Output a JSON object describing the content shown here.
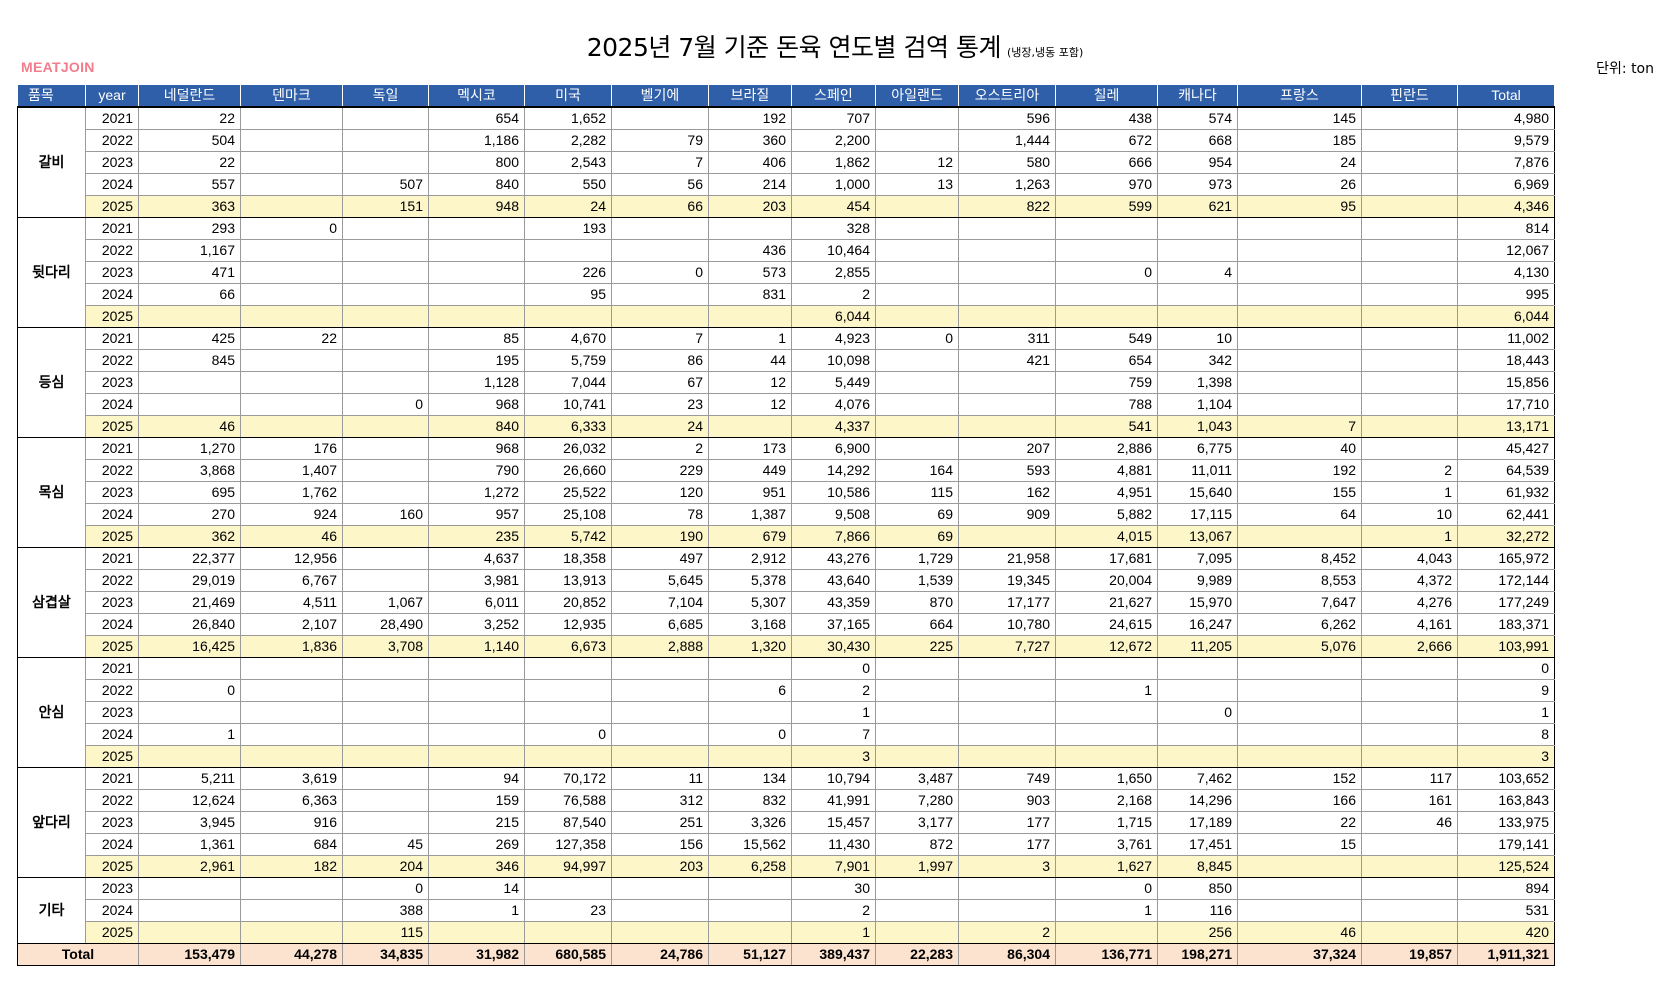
{
  "title": "2025년 7월 기준 돈육 연도별 검역 통계",
  "subtitle": "(냉장,냉동 포함)",
  "brand": "MEATJOIN",
  "unit": "단위: ton",
  "headers": [
    "품목",
    "year",
    "네덜란드",
    "덴마크",
    "독일",
    "멕시코",
    "미국",
    "벨기에",
    "브라질",
    "스페인",
    "아일랜드",
    "오스트리아",
    "칠레",
    "캐나다",
    "프랑스",
    "핀란드",
    "Total"
  ],
  "groups": [
    {
      "name": "갈비",
      "rows": [
        {
          "year": "2021",
          "v": [
            "22",
            "",
            "",
            "654",
            "1,652",
            "",
            "192",
            "707",
            "",
            "596",
            "438",
            "574",
            "145",
            "",
            "4,980"
          ]
        },
        {
          "year": "2022",
          "v": [
            "504",
            "",
            "",
            "1,186",
            "2,282",
            "79",
            "360",
            "2,200",
            "",
            "1,444",
            "672",
            "668",
            "185",
            "",
            "9,579"
          ]
        },
        {
          "year": "2023",
          "v": [
            "22",
            "",
            "",
            "800",
            "2,543",
            "7",
            "406",
            "1,862",
            "12",
            "580",
            "666",
            "954",
            "24",
            "",
            "7,876"
          ]
        },
        {
          "year": "2024",
          "v": [
            "557",
            "",
            "507",
            "840",
            "550",
            "56",
            "214",
            "1,000",
            "13",
            "1,263",
            "970",
            "973",
            "26",
            "",
            "6,969"
          ]
        },
        {
          "year": "2025",
          "v": [
            "363",
            "",
            "151",
            "948",
            "24",
            "66",
            "203",
            "454",
            "",
            "822",
            "599",
            "621",
            "95",
            "",
            "4,346"
          ]
        }
      ]
    },
    {
      "name": "뒷다리",
      "rows": [
        {
          "year": "2021",
          "v": [
            "293",
            "0",
            "",
            "",
            "193",
            "",
            "",
            "328",
            "",
            "",
            "",
            "",
            "",
            "",
            "814"
          ]
        },
        {
          "year": "2022",
          "v": [
            "1,167",
            "",
            "",
            "",
            "",
            "",
            "436",
            "10,464",
            "",
            "",
            "",
            "",
            "",
            "",
            "12,067"
          ]
        },
        {
          "year": "2023",
          "v": [
            "471",
            "",
            "",
            "",
            "226",
            "0",
            "573",
            "2,855",
            "",
            "",
            "0",
            "4",
            "",
            "",
            "4,130"
          ]
        },
        {
          "year": "2024",
          "v": [
            "66",
            "",
            "",
            "",
            "95",
            "",
            "831",
            "2",
            "",
            "",
            "",
            "",
            "",
            "",
            "995"
          ]
        },
        {
          "year": "2025",
          "v": [
            "",
            "",
            "",
            "",
            "",
            "",
            "",
            "6,044",
            "",
            "",
            "",
            "",
            "",
            "",
            "6,044"
          ]
        }
      ]
    },
    {
      "name": "등심",
      "rows": [
        {
          "year": "2021",
          "v": [
            "425",
            "22",
            "",
            "85",
            "4,670",
            "7",
            "1",
            "4,923",
            "0",
            "311",
            "549",
            "10",
            "",
            "",
            "11,002"
          ]
        },
        {
          "year": "2022",
          "v": [
            "845",
            "",
            "",
            "195",
            "5,759",
            "86",
            "44",
            "10,098",
            "",
            "421",
            "654",
            "342",
            "",
            "",
            "18,443"
          ]
        },
        {
          "year": "2023",
          "v": [
            "",
            "",
            "",
            "1,128",
            "7,044",
            "67",
            "12",
            "5,449",
            "",
            "",
            "759",
            "1,398",
            "",
            "",
            "15,856"
          ]
        },
        {
          "year": "2024",
          "v": [
            "",
            "",
            "0",
            "968",
            "10,741",
            "23",
            "12",
            "4,076",
            "",
            "",
            "788",
            "1,104",
            "",
            "",
            "17,710"
          ]
        },
        {
          "year": "2025",
          "v": [
            "46",
            "",
            "",
            "840",
            "6,333",
            "24",
            "",
            "4,337",
            "",
            "",
            "541",
            "1,043",
            "7",
            "",
            "13,171"
          ]
        }
      ]
    },
    {
      "name": "목심",
      "rows": [
        {
          "year": "2021",
          "v": [
            "1,270",
            "176",
            "",
            "968",
            "26,032",
            "2",
            "173",
            "6,900",
            "",
            "207",
            "2,886",
            "6,775",
            "40",
            "",
            "45,427"
          ]
        },
        {
          "year": "2022",
          "v": [
            "3,868",
            "1,407",
            "",
            "790",
            "26,660",
            "229",
            "449",
            "14,292",
            "164",
            "593",
            "4,881",
            "11,011",
            "192",
            "2",
            "64,539"
          ]
        },
        {
          "year": "2023",
          "v": [
            "695",
            "1,762",
            "",
            "1,272",
            "25,522",
            "120",
            "951",
            "10,586",
            "115",
            "162",
            "4,951",
            "15,640",
            "155",
            "1",
            "61,932"
          ]
        },
        {
          "year": "2024",
          "v": [
            "270",
            "924",
            "160",
            "957",
            "25,108",
            "78",
            "1,387",
            "9,508",
            "69",
            "909",
            "5,882",
            "17,115",
            "64",
            "10",
            "62,441"
          ]
        },
        {
          "year": "2025",
          "v": [
            "362",
            "46",
            "",
            "235",
            "5,742",
            "190",
            "679",
            "7,866",
            "69",
            "",
            "4,015",
            "13,067",
            "",
            "1",
            "32,272"
          ]
        }
      ]
    },
    {
      "name": "삼겹살",
      "rows": [
        {
          "year": "2021",
          "v": [
            "22,377",
            "12,956",
            "",
            "4,637",
            "18,358",
            "497",
            "2,912",
            "43,276",
            "1,729",
            "21,958",
            "17,681",
            "7,095",
            "8,452",
            "4,043",
            "165,972"
          ]
        },
        {
          "year": "2022",
          "v": [
            "29,019",
            "6,767",
            "",
            "3,981",
            "13,913",
            "5,645",
            "5,378",
            "43,640",
            "1,539",
            "19,345",
            "20,004",
            "9,989",
            "8,553",
            "4,372",
            "172,144"
          ]
        },
        {
          "year": "2023",
          "v": [
            "21,469",
            "4,511",
            "1,067",
            "6,011",
            "20,852",
            "7,104",
            "5,307",
            "43,359",
            "870",
            "17,177",
            "21,627",
            "15,970",
            "7,647",
            "4,276",
            "177,249"
          ]
        },
        {
          "year": "2024",
          "v": [
            "26,840",
            "2,107",
            "28,490",
            "3,252",
            "12,935",
            "6,685",
            "3,168",
            "37,165",
            "664",
            "10,780",
            "24,615",
            "16,247",
            "6,262",
            "4,161",
            "183,371"
          ]
        },
        {
          "year": "2025",
          "v": [
            "16,425",
            "1,836",
            "3,708",
            "1,140",
            "6,673",
            "2,888",
            "1,320",
            "30,430",
            "225",
            "7,727",
            "12,672",
            "11,205",
            "5,076",
            "2,666",
            "103,991"
          ]
        }
      ]
    },
    {
      "name": "안심",
      "rows": [
        {
          "year": "2021",
          "v": [
            "",
            "",
            "",
            "",
            "",
            "",
            "",
            "0",
            "",
            "",
            "",
            "",
            "",
            "",
            "0"
          ]
        },
        {
          "year": "2022",
          "v": [
            "0",
            "",
            "",
            "",
            "",
            "",
            "6",
            "2",
            "",
            "",
            "1",
            "",
            "",
            "",
            "9"
          ]
        },
        {
          "year": "2023",
          "v": [
            "",
            "",
            "",
            "",
            "",
            "",
            "",
            "1",
            "",
            "",
            "",
            "0",
            "",
            "",
            "1"
          ]
        },
        {
          "year": "2024",
          "v": [
            "1",
            "",
            "",
            "",
            "0",
            "",
            "0",
            "7",
            "",
            "",
            "",
            "",
            "",
            "",
            "8"
          ]
        },
        {
          "year": "2025",
          "v": [
            "",
            "",
            "",
            "",
            "",
            "",
            "",
            "3",
            "",
            "",
            "",
            "",
            "",
            "",
            "3"
          ]
        }
      ]
    },
    {
      "name": "앞다리",
      "rows": [
        {
          "year": "2021",
          "v": [
            "5,211",
            "3,619",
            "",
            "94",
            "70,172",
            "11",
            "134",
            "10,794",
            "3,487",
            "749",
            "1,650",
            "7,462",
            "152",
            "117",
            "103,652"
          ]
        },
        {
          "year": "2022",
          "v": [
            "12,624",
            "6,363",
            "",
            "159",
            "76,588",
            "312",
            "832",
            "41,991",
            "7,280",
            "903",
            "2,168",
            "14,296",
            "166",
            "161",
            "163,843"
          ]
        },
        {
          "year": "2023",
          "v": [
            "3,945",
            "916",
            "",
            "215",
            "87,540",
            "251",
            "3,326",
            "15,457",
            "3,177",
            "177",
            "1,715",
            "17,189",
            "22",
            "46",
            "133,975"
          ]
        },
        {
          "year": "2024",
          "v": [
            "1,361",
            "684",
            "45",
            "269",
            "127,358",
            "156",
            "15,562",
            "11,430",
            "872",
            "177",
            "3,761",
            "17,451",
            "15",
            "",
            "179,141"
          ]
        },
        {
          "year": "2025",
          "v": [
            "2,961",
            "182",
            "204",
            "346",
            "94,997",
            "203",
            "6,258",
            "7,901",
            "1,997",
            "3",
            "1,627",
            "8,845",
            "",
            "",
            "125,524"
          ]
        }
      ]
    },
    {
      "name": "기타",
      "rows": [
        {
          "year": "2023",
          "v": [
            "",
            "",
            "0",
            "14",
            "",
            "",
            "",
            "30",
            "",
            "",
            "0",
            "850",
            "",
            "",
            "894"
          ]
        },
        {
          "year": "2024",
          "v": [
            "",
            "",
            "388",
            "1",
            "23",
            "",
            "",
            "2",
            "",
            "",
            "1",
            "116",
            "",
            "",
            "531"
          ]
        },
        {
          "year": "2025",
          "v": [
            "",
            "",
            "115",
            "",
            "",
            "",
            "",
            "1",
            "",
            "2",
            "",
            "256",
            "46",
            "",
            "420"
          ]
        }
      ]
    }
  ],
  "total": {
    "label": "Total",
    "v": [
      "153,479",
      "44,278",
      "34,835",
      "31,982",
      "680,585",
      "24,786",
      "51,127",
      "389,437",
      "22,283",
      "86,304",
      "136,771",
      "198,271",
      "37,324",
      "19,857",
      "1,911,321"
    ]
  }
}
